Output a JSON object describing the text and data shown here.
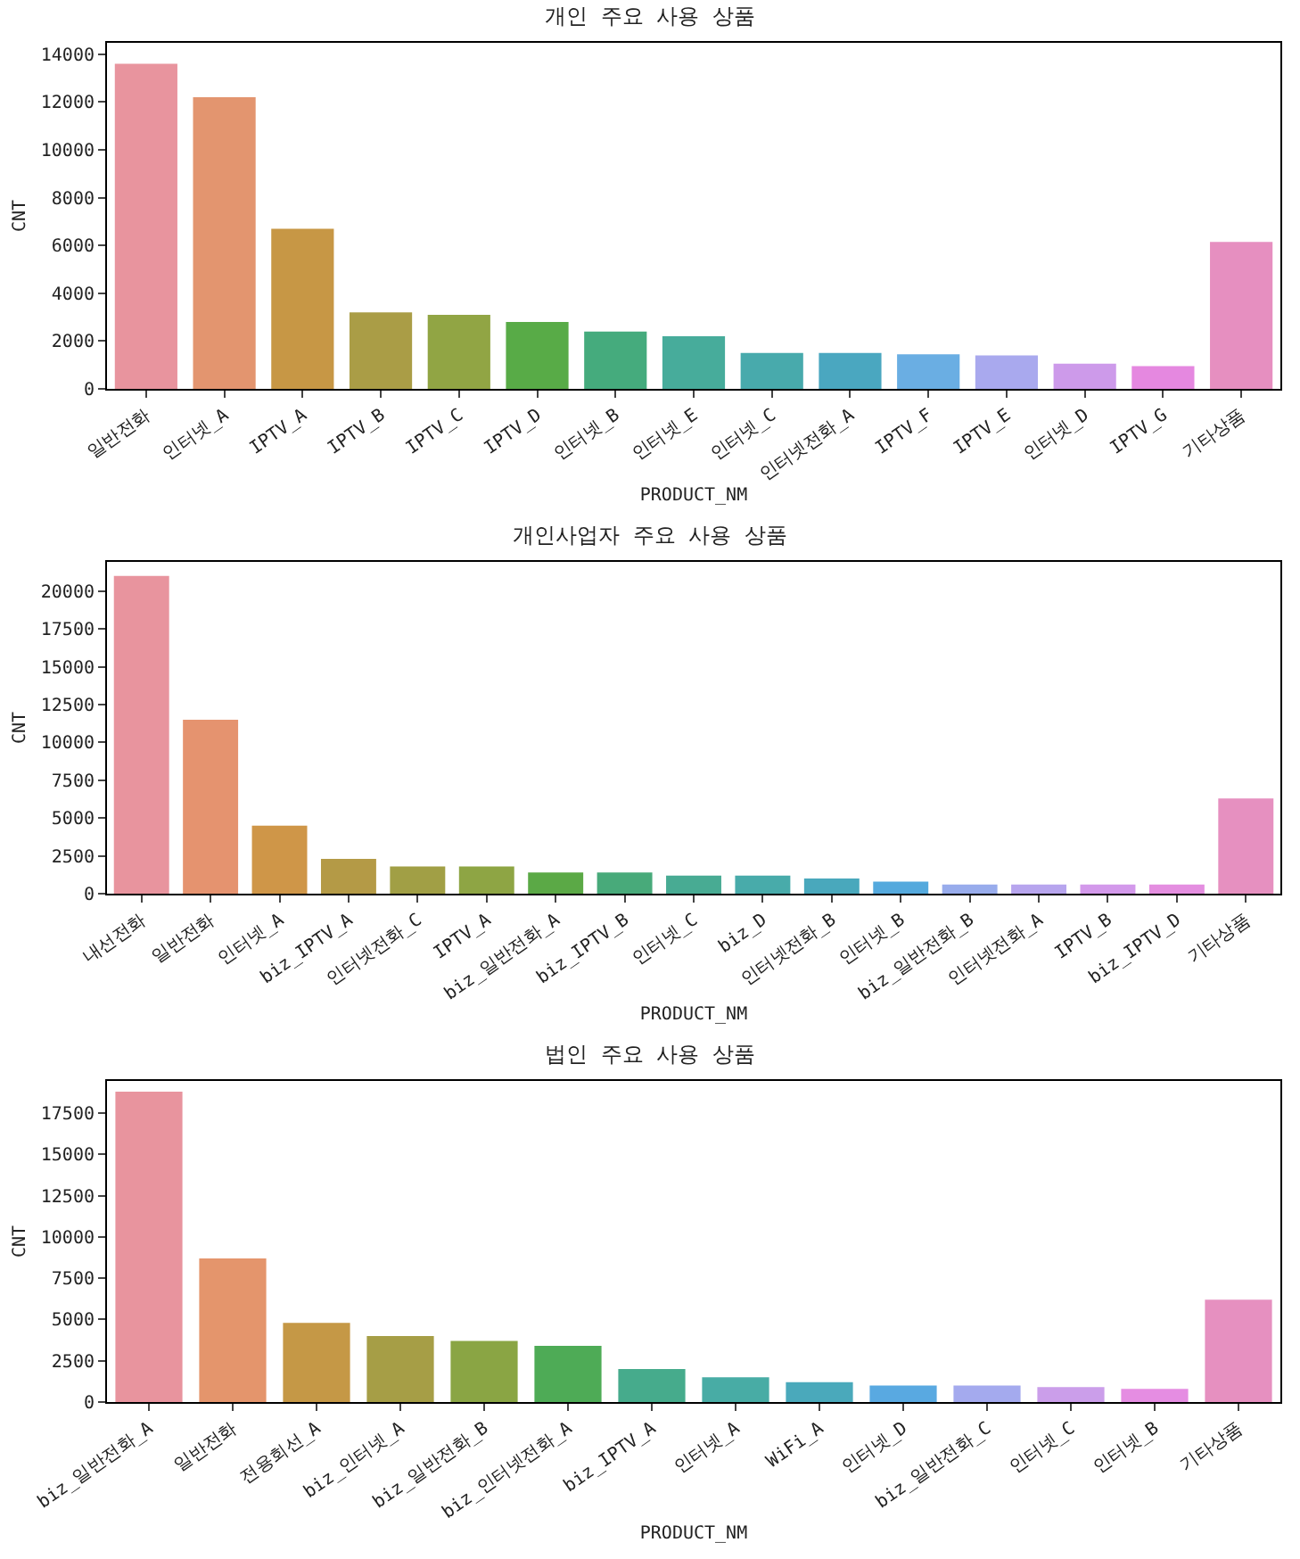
{
  "chart_data": [
    {
      "type": "bar",
      "title": "개인 주요 사용 상품",
      "xlabel": "PRODUCT_NM",
      "ylabel": "CNT",
      "categories": [
        "일반전화",
        "인터넷_A",
        "IPTV_A",
        "IPTV_B",
        "IPTV_C",
        "IPTV_D",
        "인터넷_B",
        "인터넷_E",
        "인터넷_C",
        "인터넷전화_A",
        "IPTV_F",
        "IPTV_E",
        "인터넷_D",
        "IPTV_G",
        "기타상품"
      ],
      "values": [
        13600,
        12200,
        6700,
        3200,
        3100,
        2800,
        2400,
        2200,
        1500,
        1500,
        1450,
        1400,
        1050,
        950,
        6150
      ],
      "colors": [
        "#e8949e",
        "#e3956f",
        "#c79745",
        "#aa9d46",
        "#91a544",
        "#58ab47",
        "#45ab7d",
        "#47ac9b",
        "#48aaac",
        "#4aa7c0",
        "#6aaee3",
        "#a9a9ee",
        "#cd9aea",
        "#e588e0",
        "#e68fc0"
      ],
      "ylim": [
        0,
        14480
      ],
      "yticks": [
        0,
        2000,
        4000,
        6000,
        8000,
        10000,
        12000,
        14000
      ],
      "grid": false
    },
    {
      "type": "bar",
      "title": "개인사업자 주요 사용 상품",
      "xlabel": "PRODUCT_NM",
      "ylabel": "CNT",
      "categories": [
        "내선전화",
        "일반전화",
        "인터넷_A",
        "biz_IPTV_A",
        "인터넷전화_C",
        "IPTV_A",
        "biz_일반전화_A",
        "biz_IPTV_B",
        "인터넷_C",
        "biz_D",
        "인터넷전화_B",
        "인터넷_B",
        "biz_일반전화_B",
        "인터넷전화_A",
        "IPTV_B",
        "biz_IPTV_D",
        "기타상품"
      ],
      "values": [
        21000,
        11500,
        4500,
        2300,
        1800,
        1800,
        1400,
        1400,
        1200,
        1200,
        1000,
        800,
        600,
        600,
        600,
        600,
        6300
      ],
      "colors": [
        "#e8949e",
        "#e5936f",
        "#cf9648",
        "#b49a46",
        "#a19f45",
        "#8ea544",
        "#5ba946",
        "#48aa7a",
        "#48ab93",
        "#48abaa",
        "#49a8bc",
        "#54a9dd",
        "#98acec",
        "#b7a5ee",
        "#d399eb",
        "#e48ee0",
        "#e690c0"
      ],
      "ylim": [
        0,
        21930
      ],
      "yticks": [
        0,
        2500,
        5000,
        7500,
        10000,
        12500,
        15000,
        17500,
        20000
      ],
      "grid": false
    },
    {
      "type": "bar",
      "title": "법인 주요 사용 상품",
      "xlabel": "PRODUCT_NM",
      "ylabel": "CNT",
      "categories": [
        "biz_일반전화_A",
        "일반전화",
        "전용회선_A",
        "biz_인터넷_A",
        "biz_일반전화_B",
        "biz_인터넷전화_A",
        "biz_IPTV_A",
        "인터넷_A",
        "WiFi_A",
        "인터넷_D",
        "biz_일반전화_C",
        "인터넷_C",
        "인터넷_B",
        "기타상품"
      ],
      "values": [
        18800,
        8700,
        4800,
        4000,
        3700,
        3400,
        2000,
        1500,
        1200,
        1000,
        1000,
        900,
        800,
        6200
      ],
      "colors": [
        "#e8949e",
        "#e4956c",
        "#c59846",
        "#a69e46",
        "#8aa544",
        "#4eab56",
        "#46ab8c",
        "#48aca5",
        "#4aa9bb",
        "#59a9e1",
        "#a4aaee",
        "#cb9eea",
        "#e58de2",
        "#e690c0"
      ],
      "ylim": [
        0,
        19450
      ],
      "yticks": [
        0,
        2500,
        5000,
        7500,
        10000,
        12500,
        15000,
        17500
      ],
      "grid": false
    }
  ]
}
